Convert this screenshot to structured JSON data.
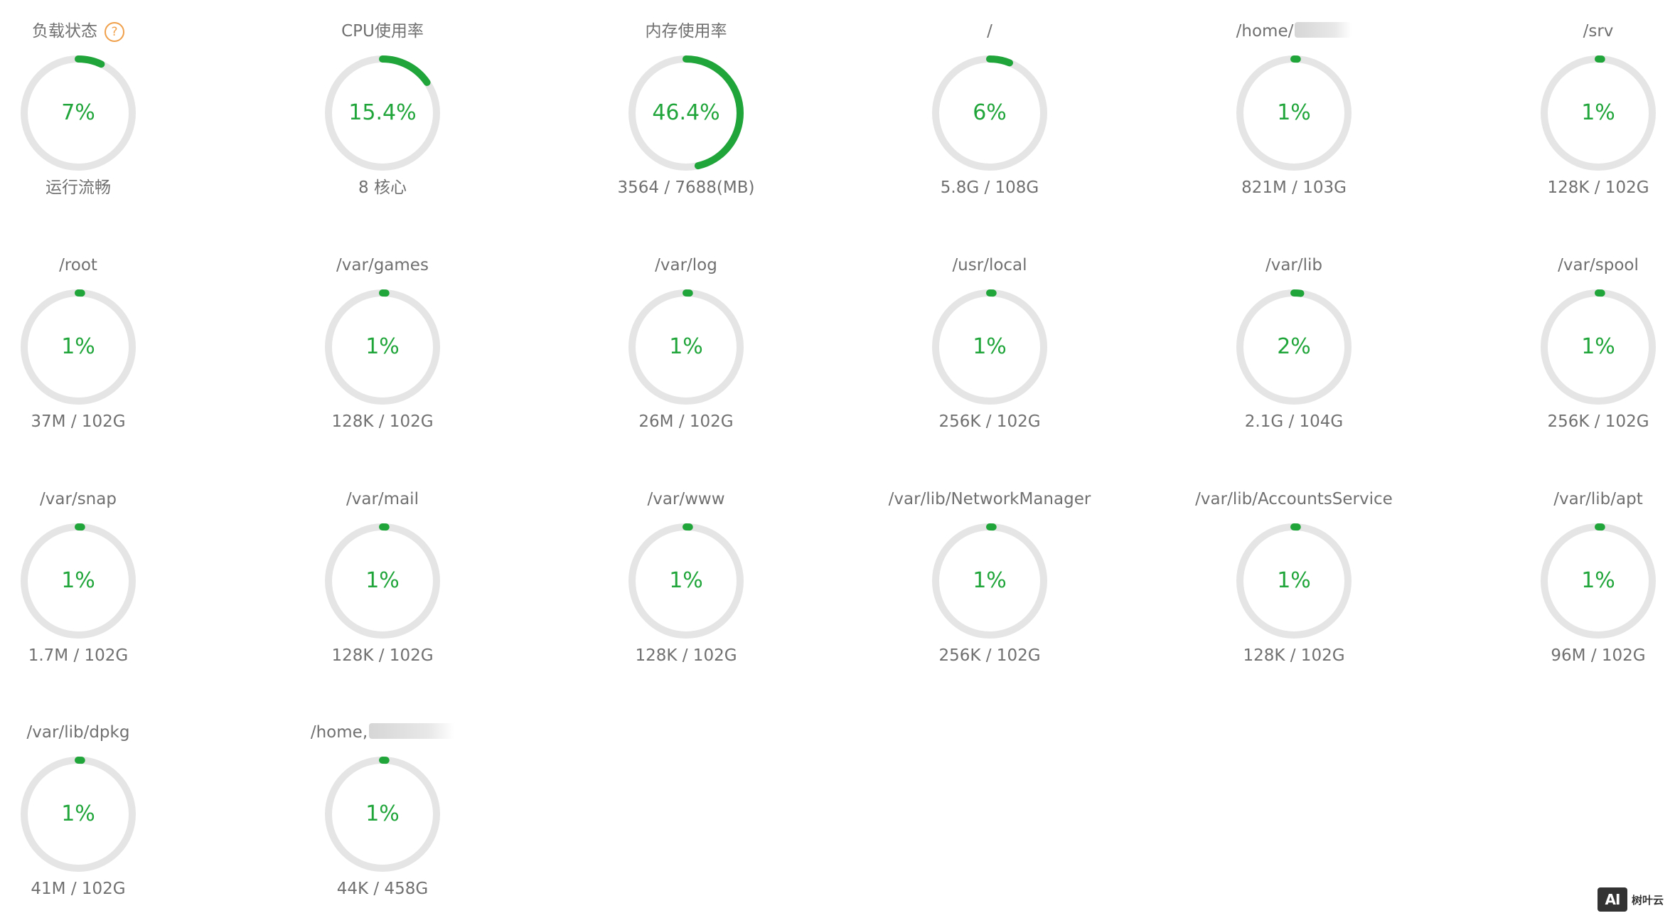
{
  "colors": {
    "accent": "#20a53a",
    "track": "#e5e5e5",
    "text": "#707070",
    "help": "#f0a04b"
  },
  "gauges": [
    {
      "label": "负载状态",
      "value": "7%",
      "percent": 7,
      "sub": "运行流畅",
      "help_icon": "question-circle-icon",
      "help_glyph": "?"
    },
    {
      "label": "CPU使用率",
      "value": "15.4%",
      "percent": 15.4,
      "sub": "8 核心"
    },
    {
      "label": "内存使用率",
      "value": "46.4%",
      "percent": 46.4,
      "sub": "3564 / 7688(MB)"
    },
    {
      "label": "/",
      "value": "6%",
      "percent": 6,
      "sub": "5.8G / 108G"
    },
    {
      "label": "/home/",
      "value": "1%",
      "percent": 1,
      "sub": "821M / 103G",
      "redacted": true
    },
    {
      "label": "/srv",
      "value": "1%",
      "percent": 1,
      "sub": "128K / 102G"
    },
    {
      "label": "/root",
      "value": "1%",
      "percent": 1,
      "sub": "37M / 102G"
    },
    {
      "label": "/var/games",
      "value": "1%",
      "percent": 1,
      "sub": "128K / 102G"
    },
    {
      "label": "/var/log",
      "value": "1%",
      "percent": 1,
      "sub": "26M / 102G"
    },
    {
      "label": "/usr/local",
      "value": "1%",
      "percent": 1,
      "sub": "256K / 102G"
    },
    {
      "label": "/var/lib",
      "value": "2%",
      "percent": 2,
      "sub": "2.1G / 104G"
    },
    {
      "label": "/var/spool",
      "value": "1%",
      "percent": 1,
      "sub": "256K / 102G"
    },
    {
      "label": "/var/snap",
      "value": "1%",
      "percent": 1,
      "sub": "1.7M / 102G"
    },
    {
      "label": "/var/mail",
      "value": "1%",
      "percent": 1,
      "sub": "128K / 102G"
    },
    {
      "label": "/var/www",
      "value": "1%",
      "percent": 1,
      "sub": "128K / 102G"
    },
    {
      "label": "/var/lib/NetworkManager",
      "value": "1%",
      "percent": 1,
      "sub": "256K / 102G"
    },
    {
      "label": "/var/lib/AccountsService",
      "value": "1%",
      "percent": 1,
      "sub": "128K / 102G"
    },
    {
      "label": "/var/lib/apt",
      "value": "1%",
      "percent": 1,
      "sub": "96M / 102G"
    },
    {
      "label": "/var/lib/dpkg",
      "value": "1%",
      "percent": 1,
      "sub": "41M / 102G"
    },
    {
      "label": "/home,",
      "value": "1%",
      "percent": 1,
      "sub": "44K / 458G",
      "redacted": true
    }
  ],
  "watermark": {
    "logo_text": "AI",
    "brand": "树叶云"
  }
}
